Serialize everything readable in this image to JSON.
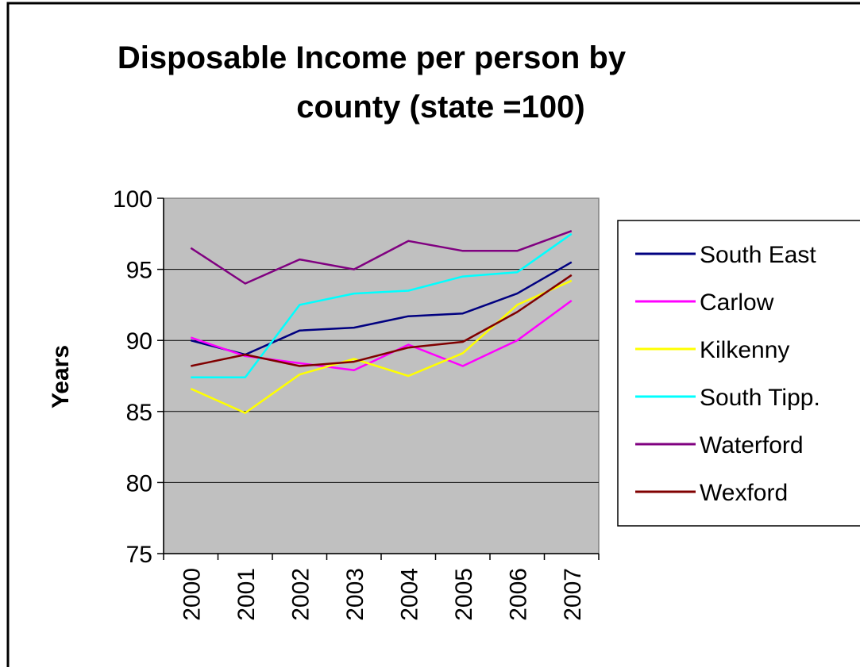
{
  "chart_data": {
    "type": "line",
    "title_lines": [
      "Disposable Income per person by",
      "county (state =100)"
    ],
    "xlabel": "",
    "ylabel": "Years",
    "categories": [
      "2000",
      "2001",
      "2002",
      "2003",
      "2004",
      "2005",
      "2006",
      "2007"
    ],
    "ylim": [
      75,
      100
    ],
    "yticks": [
      "100",
      "95",
      "90",
      "85",
      "80",
      "75"
    ],
    "grid": true,
    "legend_position": "right",
    "plot_background": "#c0c0c0",
    "series": [
      {
        "name": "South East",
        "color": "#000080",
        "values": [
          90.0,
          89.0,
          90.7,
          90.9,
          91.7,
          91.9,
          93.3,
          95.5
        ]
      },
      {
        "name": "Carlow",
        "color": "#ff00ff",
        "values": [
          90.2,
          88.9,
          88.4,
          87.9,
          89.7,
          88.2,
          90.0,
          92.8
        ]
      },
      {
        "name": "Kilkenny",
        "color": "#ffff00",
        "values": [
          86.6,
          84.9,
          87.6,
          88.7,
          87.5,
          89.1,
          92.5,
          94.2
        ]
      },
      {
        "name": "South Tipp.",
        "color": "#00ffff",
        "values": [
          87.4,
          87.4,
          92.5,
          93.3,
          93.5,
          94.5,
          94.8,
          97.5
        ]
      },
      {
        "name": "Waterford",
        "color": "#800080",
        "values": [
          96.5,
          94.0,
          95.7,
          95.0,
          97.0,
          96.3,
          96.3,
          97.7
        ]
      },
      {
        "name": "Wexford",
        "color": "#800000",
        "values": [
          88.2,
          89.0,
          88.2,
          88.5,
          89.5,
          89.9,
          92.0,
          94.6
        ]
      }
    ]
  }
}
